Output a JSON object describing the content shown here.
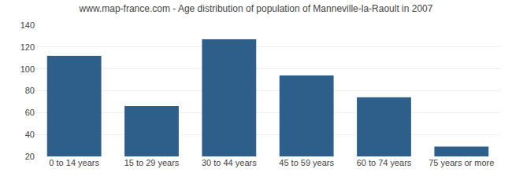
{
  "chart_data": {
    "type": "bar",
    "title": "www.map-france.com - Age distribution of population of Manneville-la-Raoult in 2007",
    "categories": [
      "0 to 14 years",
      "15 to 29 years",
      "30 to 44 years",
      "45 to 59 years",
      "60 to 74 years",
      "75 years or more"
    ],
    "values": [
      112,
      66,
      127,
      94,
      74,
      29
    ],
    "color": "#2e5f8a",
    "ylim": [
      20,
      140
    ],
    "yticks": [
      20,
      40,
      60,
      80,
      100,
      120,
      140
    ],
    "grid": true
  }
}
